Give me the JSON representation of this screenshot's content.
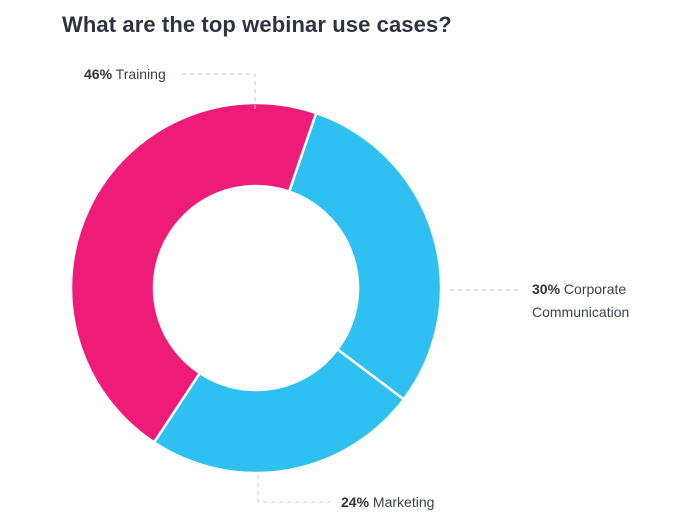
{
  "chart_data": {
    "type": "pie",
    "title": "What are the top webinar use cases?",
    "categories": [
      "Training",
      "Corporate Communication",
      "Marketing"
    ],
    "values": [
      46,
      30,
      24
    ],
    "units": "%",
    "colors": [
      "#ee1c78",
      "#2ec0f0",
      "#2ec0f0"
    ],
    "donut": true,
    "labels": [
      {
        "pct": "46%",
        "text": "Training"
      },
      {
        "pct": "30%",
        "text": "Corporate",
        "text2": "Communication"
      },
      {
        "pct": "24%",
        "text": "Marketing"
      }
    ]
  }
}
